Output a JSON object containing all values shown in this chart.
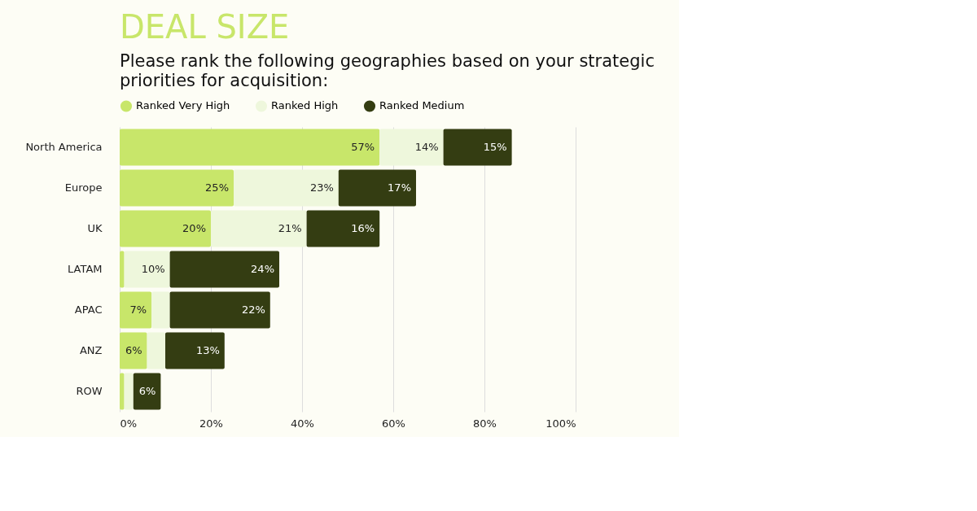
{
  "chart_data": {
    "type": "bar",
    "orientation": "horizontal",
    "stacked": true,
    "title": "DEAL SIZE",
    "subtitle": "Please rank the following geographies based on your strategic priorities for acquisition:",
    "categories": [
      "North America",
      "Europe",
      "UK",
      "LATAM",
      "APAC",
      "ANZ",
      "ROW"
    ],
    "series": [
      {
        "name": "Ranked Very High",
        "color": "#c8e66a",
        "values": [
          57,
          25,
          20,
          1,
          7,
          6,
          1
        ],
        "value_labels": [
          "57%",
          "25%",
          "20%",
          null,
          "7%",
          "6%",
          null
        ]
      },
      {
        "name": "Ranked High",
        "color": "#eef7dc",
        "values": [
          14,
          23,
          21,
          10,
          4,
          4,
          2
        ],
        "value_labels": [
          "14%",
          "23%",
          "21%",
          "10%",
          null,
          null,
          null
        ]
      },
      {
        "name": "Ranked Medium",
        "color": "#343d12",
        "values": [
          15,
          17,
          16,
          24,
          22,
          13,
          6
        ],
        "value_labels": [
          "15%",
          "17%",
          "16%",
          "24%",
          "22%",
          "13%",
          "6%"
        ]
      }
    ],
    "xlim": [
      0,
      100
    ],
    "xticks": [
      {
        "value": 0,
        "label": "0%"
      },
      {
        "value": 20,
        "label": "20%"
      },
      {
        "value": 40,
        "label": "40%"
      },
      {
        "value": 60,
        "label": "60%"
      },
      {
        "value": 80,
        "label": "80%"
      },
      {
        "value": 100,
        "label": "100%"
      }
    ],
    "grid": "x",
    "legend": "top"
  }
}
